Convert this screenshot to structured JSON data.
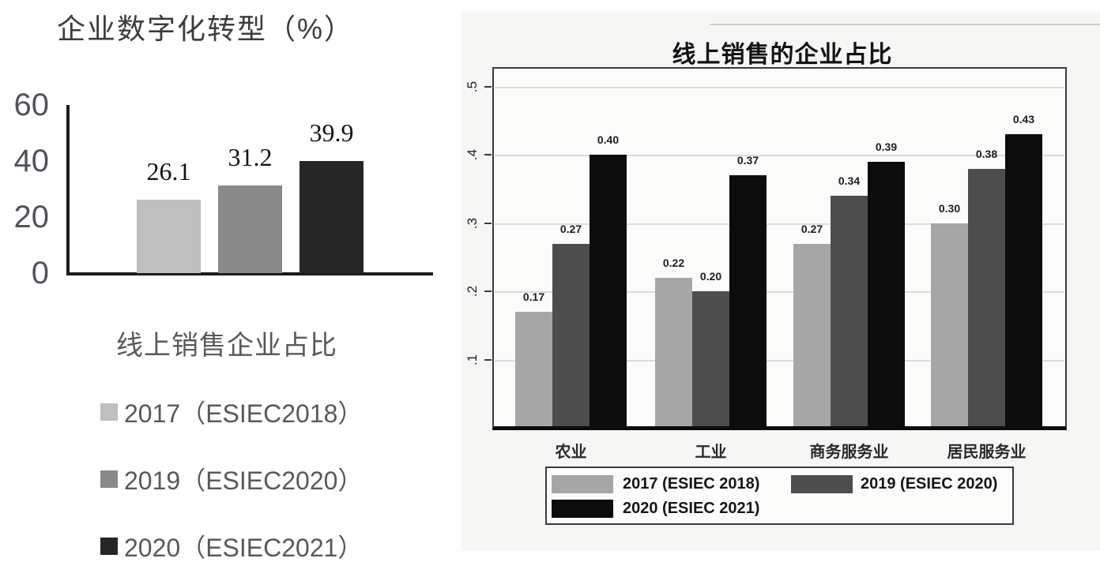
{
  "chart_data": [
    {
      "type": "bar",
      "title": "企业数字化转型（%）",
      "categories": [
        "2017（ESIEC2018）",
        "2019（ESIEC2020）",
        "2020（ESIEC2021）"
      ],
      "values": [
        26.1,
        31.2,
        39.9
      ],
      "bar_labels": [
        "26.1",
        "31.2",
        "39.9"
      ],
      "bar_colors": [
        "#bfbfbf",
        "#8a8a8a",
        "#262626"
      ],
      "xlabel": "",
      "ylabel": "",
      "ylim": [
        0,
        60
      ],
      "y_ticks": [
        {
          "label": "0",
          "value": 0
        },
        {
          "label": "20",
          "value": 20
        },
        {
          "label": "40",
          "value": 40
        },
        {
          "label": "60",
          "value": 60
        }
      ],
      "grid": false,
      "legend_title": "线上销售企业占比",
      "legend_position": "below",
      "legend": [
        {
          "label": "2017（ESIEC2018）",
          "color": "#bfbfbf"
        },
        {
          "label": "2019（ESIEC2020）",
          "color": "#8a8a8a"
        },
        {
          "label": "2020（ESIEC2021）",
          "color": "#262626"
        }
      ]
    },
    {
      "type": "bar",
      "title": "线上销售的企业占比",
      "categories": [
        "农业",
        "工业",
        "商务服务业",
        "居民服务业"
      ],
      "series": [
        {
          "name": "2017 (ESIEC 2018)",
          "color": "#a6a6a6",
          "values": [
            0.17,
            0.22,
            0.27,
            0.3
          ],
          "labels": [
            "0.17",
            "0.22",
            "0.27",
            "0.30"
          ]
        },
        {
          "name": "2019 (ESIEC 2020)",
          "color": "#4d4d4d",
          "values": [
            0.27,
            0.2,
            0.34,
            0.38
          ],
          "labels": [
            "0.27",
            "0.20",
            "0.34",
            "0.38"
          ]
        },
        {
          "name": "2020 (ESIEC 2021)",
          "color": "#0c0c0c",
          "values": [
            0.4,
            0.37,
            0.39,
            0.43
          ],
          "labels": [
            "0.40",
            "0.37",
            "0.39",
            "0.43"
          ]
        }
      ],
      "xlabel": "",
      "ylabel": "",
      "ylim": [
        0,
        0.53
      ],
      "y_ticks": [
        {
          "label": ".1",
          "value": 0.1
        },
        {
          "label": ".2",
          "value": 0.2
        },
        {
          "label": ".3",
          "value": 0.3
        },
        {
          "label": ".4",
          "value": 0.4
        },
        {
          "label": ".5",
          "value": 0.5
        }
      ],
      "grid": true,
      "legend_position": "below-box"
    }
  ]
}
